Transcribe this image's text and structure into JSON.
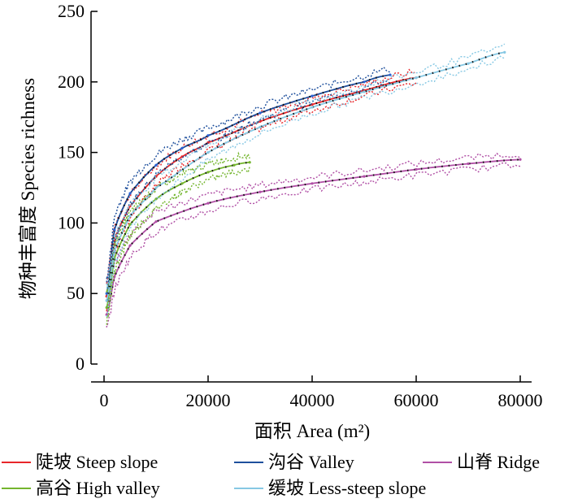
{
  "chart_data": {
    "type": "line",
    "title": "",
    "xlabel": "面积 Area (m²)",
    "ylabel": "物种丰富度 Species richness",
    "xlim": [
      0,
      80000
    ],
    "ylim": [
      0,
      250
    ],
    "xticks": [
      0,
      20000,
      40000,
      60000,
      80000
    ],
    "yticks": [
      0,
      50,
      100,
      150,
      200,
      250
    ],
    "xtick_labels": [
      "0",
      "20000",
      "40000",
      "60000",
      "80000"
    ],
    "ytick_labels": [
      "0",
      "50",
      "100",
      "150",
      "200",
      "250"
    ],
    "grid": false,
    "legend_position": "bottom",
    "series": [
      {
        "name": "陡坡 Steep slope",
        "color": "#e8262a",
        "dot_color": "#e8262a",
        "x": [
          500,
          2000,
          5000,
          10000,
          15000,
          20000,
          30000,
          40000,
          50000,
          60000
        ],
        "y": [
          48,
          88,
          112,
          133,
          147,
          157,
          172,
          184,
          194,
          203
        ]
      },
      {
        "name": "沟谷 Valley",
        "color": "#1e4f9c",
        "dot_color": "#2a62d6",
        "x": [
          500,
          2000,
          5000,
          10000,
          15000,
          20000,
          30000,
          40000,
          50000,
          55000
        ],
        "y": [
          50,
          95,
          121,
          141,
          153,
          162,
          178,
          190,
          200,
          205
        ]
      },
      {
        "name": "山脊 Ridge",
        "color": "#b04fa5",
        "dot_color": "#b04fa5",
        "x": [
          500,
          2000,
          5000,
          10000,
          20000,
          30000,
          40000,
          50000,
          60000,
          70000,
          80000
        ],
        "y": [
          35,
          62,
          84,
          101,
          114,
          122,
          128,
          133,
          138,
          142,
          145
        ]
      },
      {
        "name": "高谷 High valley",
        "color": "#74b52e",
        "dot_color": "#74b52e",
        "x": [
          500,
          2000,
          5000,
          10000,
          15000,
          20000,
          25000,
          28000
        ],
        "y": [
          40,
          75,
          99,
          117,
          128,
          136,
          141,
          143
        ]
      },
      {
        "name": "缓坡 Less-steep slope",
        "color": "#86c8e4",
        "dot_color": "#86c8e4",
        "x": [
          500,
          2000,
          5000,
          10000,
          20000,
          30000,
          40000,
          50000,
          60000,
          70000,
          77000
        ],
        "y": [
          45,
          80,
          105,
          125,
          150,
          168,
          182,
          193,
          203,
          213,
          221
        ]
      }
    ]
  }
}
